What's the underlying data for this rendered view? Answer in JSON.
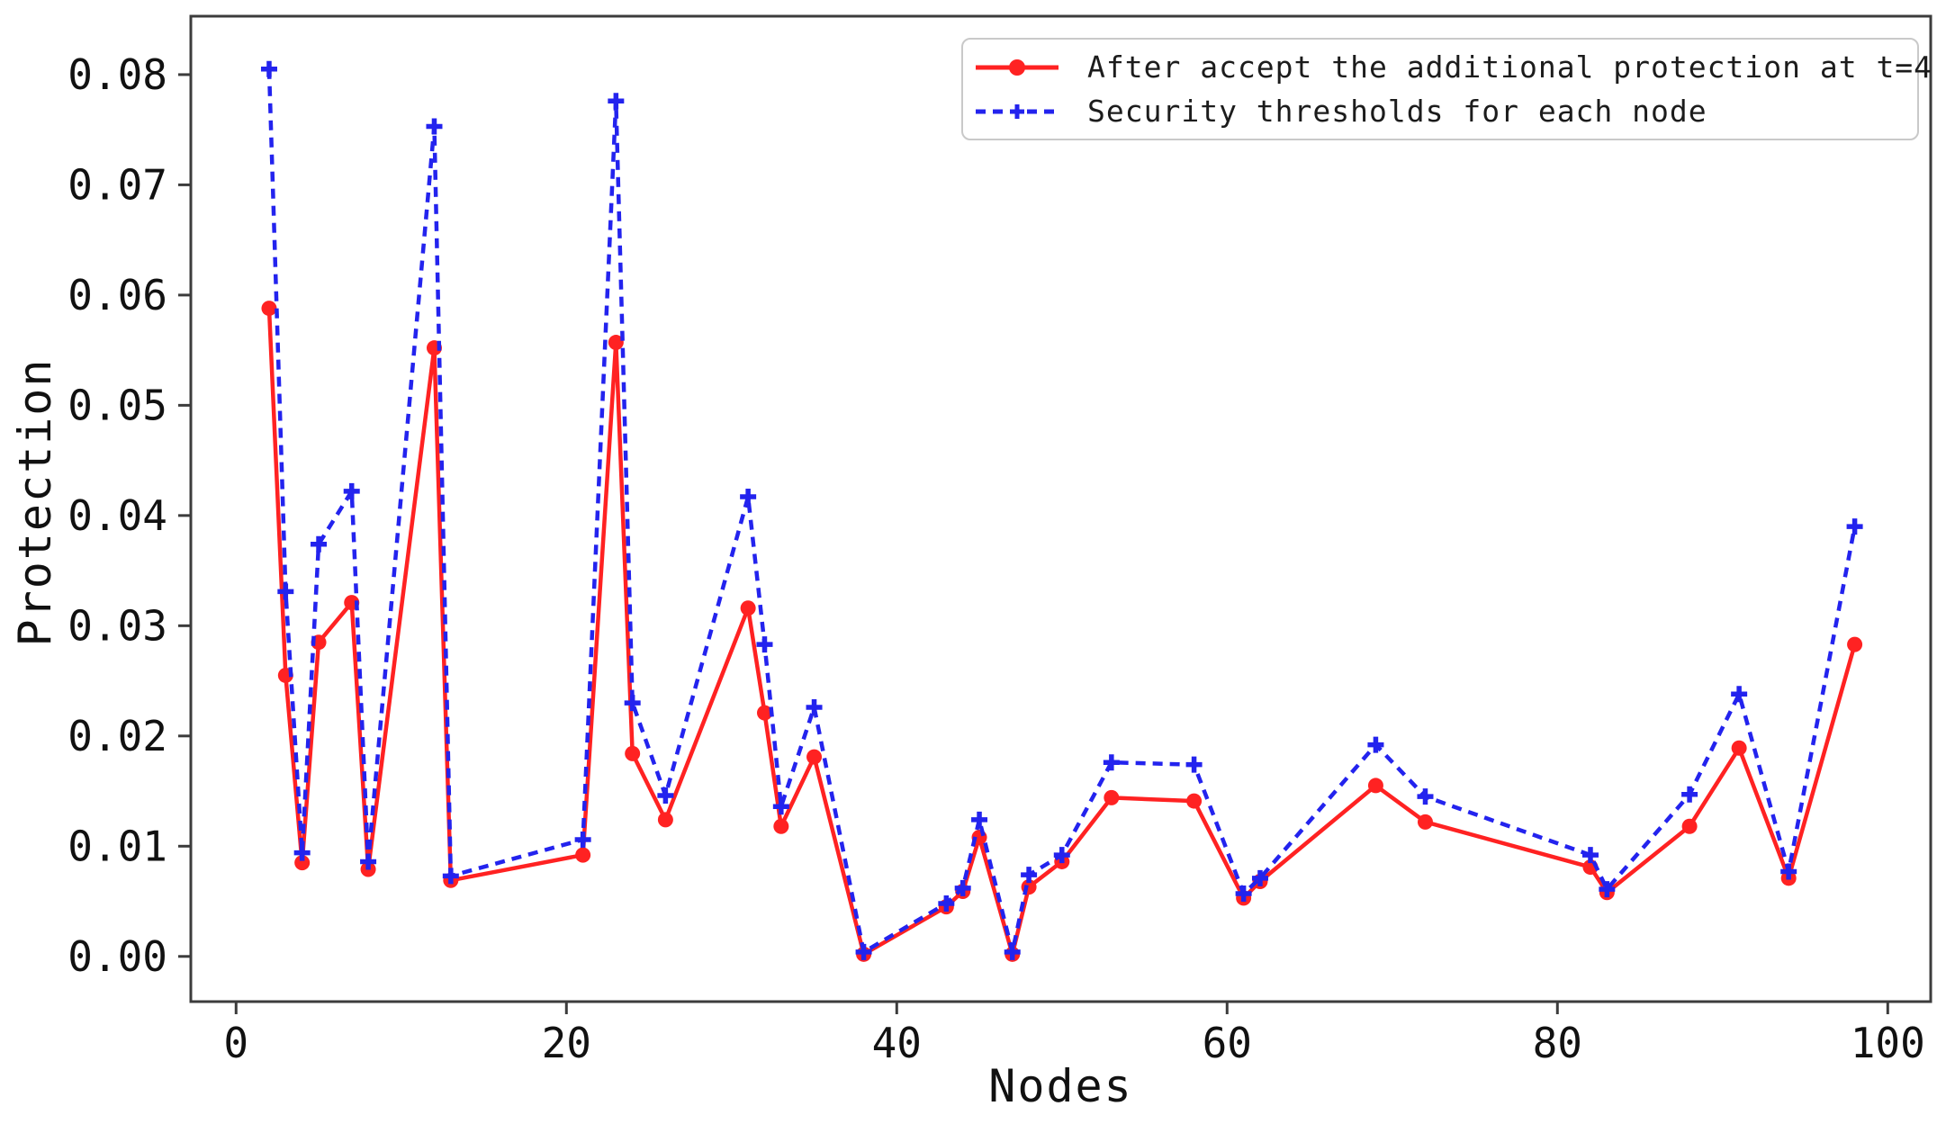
{
  "chart_data": {
    "type": "line",
    "title": "",
    "xlabel": "Nodes",
    "ylabel": "Protection",
    "grid": false,
    "legend_position": "top-right",
    "xlim": [
      -2.74,
      102.6
    ],
    "ylim": [
      -0.0041,
      0.0853
    ],
    "x_ticks": [
      0,
      20,
      40,
      60,
      80,
      100
    ],
    "y_ticks": [
      "0.00",
      "0.01",
      "0.02",
      "0.03",
      "0.04",
      "0.05",
      "0.06",
      "0.07",
      "0.08"
    ],
    "x": [
      2,
      3,
      4,
      5,
      7,
      8,
      12,
      13,
      21,
      23,
      24,
      26,
      31,
      32,
      33,
      35,
      38,
      43,
      44,
      45,
      47,
      48,
      50,
      53,
      58,
      61,
      62,
      69,
      72,
      82,
      83,
      88,
      91,
      94,
      98
    ],
    "series": [
      {
        "name": "After accept the additional protection at t=4",
        "color": "#ff2222",
        "line_style": "solid",
        "marker": "circle",
        "values": [
          0.0588,
          0.0255,
          0.0085,
          0.0285,
          0.0321,
          0.0079,
          0.0552,
          0.0069,
          0.0092,
          0.0557,
          0.0184,
          0.0124,
          0.0316,
          0.0221,
          0.0118,
          0.0181,
          0.0002,
          0.0045,
          0.0059,
          0.0108,
          0.0002,
          0.0063,
          0.0086,
          0.0144,
          0.0141,
          0.0053,
          0.0068,
          0.0155,
          0.0122,
          0.0081,
          0.0058,
          0.0118,
          0.0189,
          0.0071,
          0.0283
        ]
      },
      {
        "name": "Security thresholds for each node",
        "color": "#2323ee",
        "line_style": "dashed",
        "marker": "plus",
        "values": [
          0.0805,
          0.0331,
          0.0094,
          0.0374,
          0.0422,
          0.0086,
          0.0753,
          0.0073,
          0.0106,
          0.0776,
          0.023,
          0.0146,
          0.0417,
          0.0283,
          0.0136,
          0.0226,
          0.0004,
          0.0048,
          0.0062,
          0.0124,
          0.0004,
          0.0074,
          0.0092,
          0.0176,
          0.0174,
          0.0057,
          0.0071,
          0.0192,
          0.0145,
          0.0092,
          0.0061,
          0.0147,
          0.0238,
          0.0077,
          0.039
        ]
      }
    ]
  }
}
